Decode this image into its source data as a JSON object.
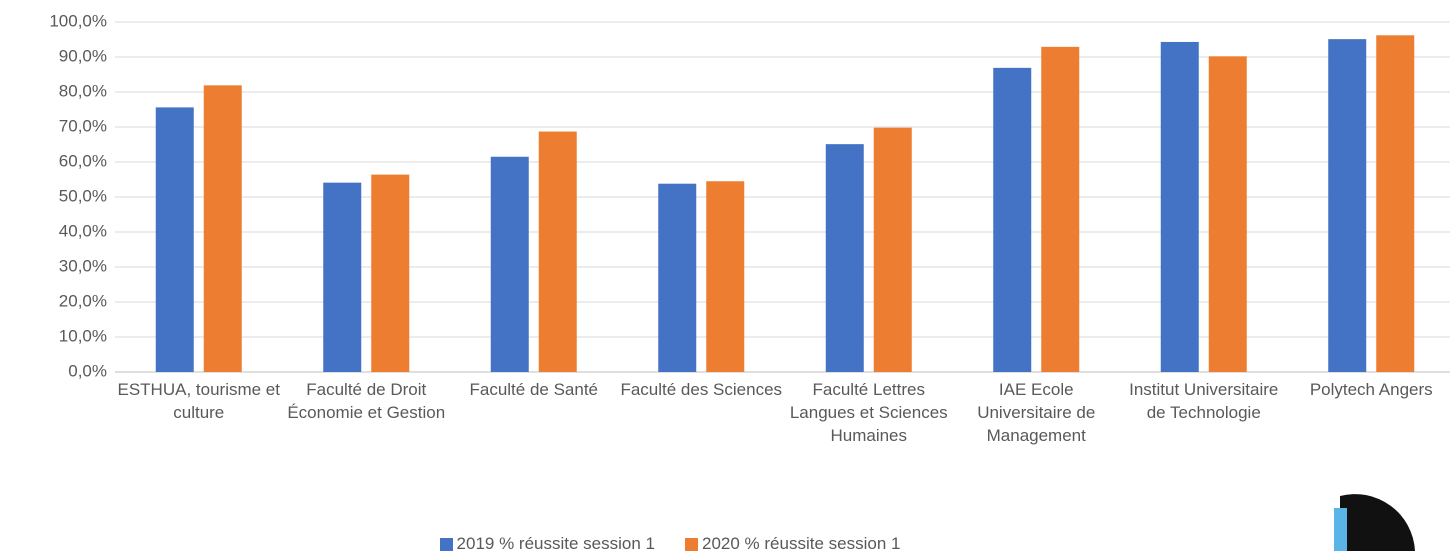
{
  "chart_data": {
    "type": "bar",
    "categories": [
      "ESTHUA, tourisme et culture",
      "Faculté de Droit Économie et Gestion",
      "Faculté de Santé",
      "Faculté des Sciences",
      "Faculté Lettres Langues et Sciences Humaines",
      "IAE Ecole Universitaire de Management",
      "Institut Universitaire de Technologie",
      "Polytech Angers"
    ],
    "series": [
      {
        "name": "2019 % réussite session 1",
        "color": "#4472c4",
        "values": [
          75.6,
          54.1,
          61.5,
          53.8,
          65.1,
          86.9,
          94.3,
          95.1
        ]
      },
      {
        "name": "2020 % réussite session 1",
        "color": "#ed7d31",
        "values": [
          81.9,
          56.4,
          68.7,
          54.5,
          69.8,
          92.9,
          90.2,
          96.2
        ]
      }
    ],
    "ylim": [
      0,
      100
    ],
    "yticks": [
      {
        "value": 0,
        "label": "0,0%"
      },
      {
        "value": 10,
        "label": "10,0%"
      },
      {
        "value": 20,
        "label": "20,0%"
      },
      {
        "value": 30,
        "label": "30,0%"
      },
      {
        "value": 40,
        "label": "40,0%"
      },
      {
        "value": 50,
        "label": "50,0%"
      },
      {
        "value": 60,
        "label": "60,0%"
      },
      {
        "value": 70,
        "label": "70,0%"
      },
      {
        "value": 80,
        "label": "80,0%"
      },
      {
        "value": 90,
        "label": "90,0%"
      },
      {
        "value": 100,
        "label": "100,0%"
      }
    ],
    "grid": true,
    "legend": "bottom"
  }
}
